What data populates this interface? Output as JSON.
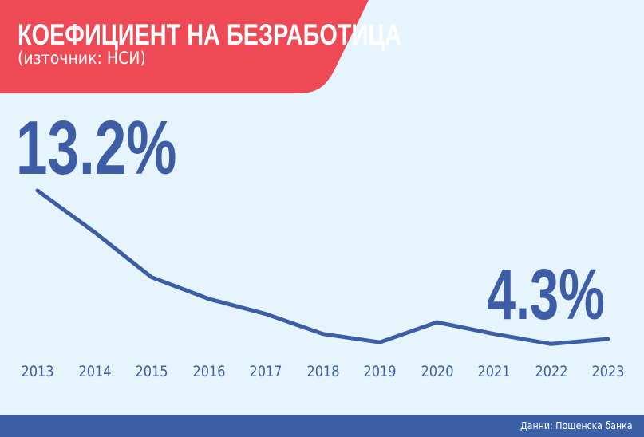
{
  "header": {
    "title": "КОЕФИЦИЕНТ НА БЕЗРАБОТИЦА",
    "subtitle": "(източник: НСИ)"
  },
  "highlights": {
    "first_value": "13.2%",
    "last_value": "4.3%"
  },
  "footer": {
    "source": "Данни: Пощенска банка"
  },
  "colors": {
    "banner": "#ee4a55",
    "background": "#e6f5fd",
    "line": "#3d5ea7",
    "footer": "#3c5fa5"
  },
  "chart_data": {
    "type": "line",
    "title": "КОЕФИЦИЕНТ НА БЕЗРАБОТИЦА",
    "subtitle": "(източник: НСИ)",
    "xlabel": "",
    "ylabel": "",
    "categories": [
      "2013",
      "2014",
      "2015",
      "2016",
      "2017",
      "2018",
      "2019",
      "2020",
      "2021",
      "2022",
      "2023"
    ],
    "series": [
      {
        "name": "Коефициент на безработица (%)",
        "values": [
          13.2,
          10.7,
          8.0,
          6.7,
          5.8,
          4.6,
          4.1,
          5.3,
          4.6,
          4.0,
          4.3
        ]
      }
    ],
    "annotations": [
      {
        "x": "2013",
        "text": "13.2%"
      },
      {
        "x": "2023",
        "text": "4.3%"
      }
    ],
    "grid": false,
    "legend": "none",
    "ylim": [
      3,
      14
    ],
    "source_note": "Данни: Пощенска банка"
  }
}
